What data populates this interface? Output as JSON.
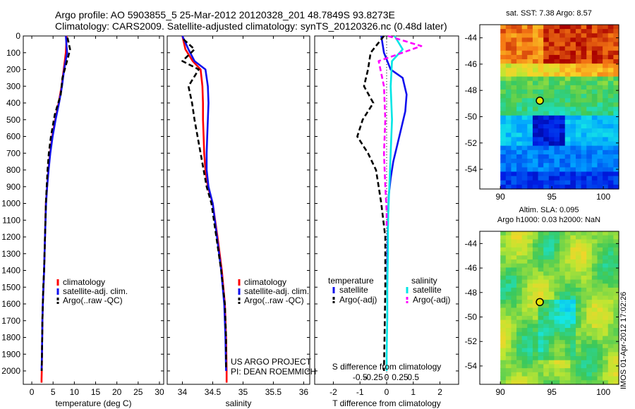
{
  "header": {
    "line1": "Argo profile: AO 5903855_5 25-Mar-2012 20120328_201 48.7849S 93.8273E",
    "line2": "Climatology: CARS2009. Satellite-adjusted climatology: synTS_20120326.nc (0.48d later)"
  },
  "colors": {
    "climatology": "#ff0000",
    "satellite": "#1010ee",
    "argo": "#000000",
    "sat_salinity": "#00e5e5",
    "argo_salinity": "#ff00ff",
    "ocean_deep": "#0000aa",
    "warm": "#aa0000"
  },
  "stamp": "IMOS 01-Apr-2012 17:02:26",
  "chart_data": [
    {
      "id": "temperature",
      "type": "line",
      "xlabel": "temperature (deg C)",
      "ylabel": "",
      "xlim": [
        -2,
        31
      ],
      "ylim": [
        2080,
        0
      ],
      "xticks": [
        0,
        5,
        10,
        15,
        20,
        25,
        30
      ],
      "xticklabels": [
        "0",
        "5",
        "10",
        "15",
        "20",
        "25",
        "30"
      ],
      "yticks": [
        0,
        100,
        200,
        300,
        400,
        500,
        600,
        700,
        800,
        900,
        1000,
        1100,
        1200,
        1300,
        1400,
        1500,
        1600,
        1700,
        1800,
        1900,
        2000
      ],
      "yticklabels": [
        "0",
        "100",
        "200",
        "300",
        "400",
        "500",
        "600",
        "700",
        "800",
        "900",
        "1000",
        "1100",
        "1200",
        "1300",
        "1400",
        "1500",
        "1600",
        "1700",
        "1800",
        "1900",
        "2000"
      ],
      "legend": [
        "climatology",
        "satellite-adj. clim.",
        "Argo(..raw -QC)"
      ],
      "series": [
        {
          "name": "climatology",
          "style": "solid",
          "color_key": "climatology",
          "x": [
            8.2,
            8.0,
            7.5,
            7.0,
            6.3,
            5.5,
            4.8,
            4.3,
            3.9,
            3.6,
            3.3,
            3.1,
            2.9,
            2.75,
            2.6,
            2.5,
            2.45,
            2.4,
            2.35,
            2.3,
            2.3
          ],
          "y": [
            0,
            100,
            200,
            300,
            400,
            500,
            600,
            700,
            800,
            900,
            1000,
            1200,
            1400,
            1500,
            1600,
            1700,
            1800,
            1900,
            2000,
            2050,
            2070
          ]
        },
        {
          "name": "satellite-adj. clim.",
          "style": "solid",
          "color_key": "satellite",
          "x": [
            8.0,
            8.3,
            7.6,
            7.1,
            6.4,
            5.6,
            4.9,
            4.35,
            3.95,
            3.6,
            3.35,
            3.1,
            2.9,
            2.75,
            2.6,
            2.5,
            2.45,
            2.4,
            2.35,
            2.3
          ],
          "y": [
            0,
            100,
            200,
            300,
            400,
            500,
            600,
            700,
            800,
            900,
            1000,
            1200,
            1400,
            1500,
            1600,
            1700,
            1800,
            1900,
            1950,
            2000
          ]
        },
        {
          "name": "Argo(..raw -QC)",
          "style": "dashed",
          "color_key": "argo",
          "x": [
            8.4,
            9.0,
            8.6,
            7.2,
            6.8,
            5.4,
            4.5,
            4.0,
            3.7,
            3.5,
            3.3,
            3.1,
            2.9,
            2.7,
            2.6,
            2.5,
            2.45,
            2.4,
            2.35,
            2.35
          ],
          "y": [
            10,
            80,
            120,
            250,
            350,
            470,
            600,
            700,
            800,
            900,
            1000,
            1200,
            1400,
            1500,
            1600,
            1700,
            1800,
            1900,
            1980,
            2000
          ]
        }
      ]
    },
    {
      "id": "salinity",
      "type": "line",
      "xlabel": "salinity",
      "ylabel": "",
      "xlim": [
        33.75,
        36.1
      ],
      "ylim": [
        2080,
        0
      ],
      "xticks": [
        34,
        34.5,
        35,
        35.5,
        36
      ],
      "xticklabels": [
        "34",
        "34.5",
        "35",
        "35.5",
        "36"
      ],
      "legend": [
        "climatology",
        "satellite-adj. clim.",
        "Argo(..raw -QC)"
      ],
      "annotations": [
        "US ARGO PROJECT",
        "PI: DEAN ROEMMICH"
      ],
      "series": [
        {
          "name": "climatology",
          "style": "solid",
          "color_key": "climatology",
          "x": [
            34.0,
            34.05,
            34.17,
            34.3,
            34.33,
            34.34,
            34.34,
            34.35,
            34.36,
            34.38,
            34.42,
            34.5,
            34.58,
            34.65,
            34.7,
            34.72,
            34.73,
            34.73
          ],
          "y": [
            0,
            80,
            150,
            200,
            300,
            400,
            500,
            600,
            700,
            800,
            900,
            1000,
            1200,
            1400,
            1600,
            1800,
            2000,
            2070
          ]
        },
        {
          "name": "satellite-adj. clim.",
          "style": "solid",
          "color_key": "satellite",
          "x": [
            34.0,
            34.1,
            34.2,
            34.38,
            34.42,
            34.43,
            34.42,
            34.41,
            34.4,
            34.4,
            34.43,
            34.5,
            34.57,
            34.64,
            34.69,
            34.71,
            34.72
          ],
          "y": [
            0,
            80,
            150,
            200,
            300,
            400,
            500,
            600,
            700,
            800,
            900,
            1000,
            1200,
            1400,
            1600,
            1800,
            2000
          ]
        },
        {
          "name": "Argo(..raw -QC)",
          "style": "dashed",
          "color_key": "argo",
          "x": [
            34.02,
            34.2,
            34.0,
            34.27,
            34.1,
            34.16,
            34.2,
            34.25,
            34.3,
            34.35,
            34.4,
            34.48,
            34.56,
            34.64,
            34.7,
            34.72,
            34.72
          ],
          "y": [
            20,
            80,
            150,
            200,
            300,
            400,
            500,
            600,
            700,
            800,
            900,
            1000,
            1200,
            1400,
            1600,
            1800,
            1980
          ]
        }
      ]
    },
    {
      "id": "difference",
      "type": "line",
      "xlabel": "T difference from climatology",
      "top_label": "S difference from climatology",
      "xlim": [
        -2.7,
        2.7
      ],
      "ylim": [
        2080,
        0
      ],
      "xticks": [
        -2,
        -1,
        0,
        1,
        2
      ],
      "xticklabels": [
        "-2",
        "-1",
        "0",
        "1",
        "2"
      ],
      "top_ticks": [
        -1,
        -0.5,
        0,
        0.5,
        1
      ],
      "top_ticklabels": [
        "-0.5",
        "-0.25",
        "0",
        "0.25",
        "0.5"
      ],
      "legend_headers": [
        "temperature",
        "salinity"
      ],
      "legend": [
        "satellite",
        "Argo(-adj)",
        "satellite",
        "Argo(-adj)"
      ],
      "series": [
        {
          "name": "satellite",
          "group": "temperature",
          "style": "solid",
          "color_key": "satellite",
          "x": [
            -0.2,
            -0.1,
            0.15,
            0.6,
            0.75,
            0.7,
            0.55,
            0.4,
            0.25,
            0.15,
            0.08,
            0.05,
            0.03,
            0.02,
            0.02
          ],
          "y": [
            0,
            100,
            200,
            250,
            350,
            450,
            550,
            650,
            750,
            850,
            950,
            1100,
            1300,
            1500,
            1700
          ]
        },
        {
          "name": "Argo(-adj)",
          "group": "temperature",
          "style": "dashed",
          "color_key": "argo",
          "x": [
            -0.1,
            -0.6,
            -0.7,
            -0.85,
            -0.5,
            -0.9,
            -1.1,
            -0.7,
            -0.4,
            -0.3,
            -0.2,
            -0.05,
            -0.05,
            -0.08,
            -0.1
          ],
          "y": [
            0,
            100,
            200,
            300,
            400,
            500,
            600,
            700,
            800,
            900,
            1000,
            1200,
            1500,
            1800,
            2000
          ]
        },
        {
          "name": "satellite",
          "group": "salinity",
          "style": "solid",
          "color_key": "sat_salinity",
          "x": [
            0.3,
            0.6,
            0.2,
            0.15,
            0.2,
            0.15,
            0.1,
            0.05,
            0.05,
            0.02,
            0.02,
            0.0,
            0.0
          ],
          "y": [
            0,
            80,
            150,
            300,
            500,
            700,
            900,
            1100,
            1300,
            1500,
            1700,
            1900,
            2000
          ]
        },
        {
          "name": "Argo(-adj)",
          "group": "salinity",
          "style": "dashed",
          "color_key": "argo_salinity",
          "x": [
            0.05,
            1.3,
            -0.3,
            -0.1,
            -0.05,
            -0.1,
            -0.05,
            0.0,
            0.0
          ],
          "y": [
            0,
            60,
            150,
            300,
            500,
            700,
            900,
            1050,
            1150
          ]
        }
      ]
    },
    {
      "id": "sst_map",
      "type": "heatmap",
      "title": "sat. SST: 7.38 Argo: 8.57",
      "xlim": [
        88,
        101.5
      ],
      "ylim": [
        -55.5,
        -43
      ],
      "xticks": [
        90,
        95,
        100
      ],
      "xticklabels": [
        "90",
        "95",
        "100"
      ],
      "yticks": [
        -44,
        -46,
        -48,
        -50,
        -52,
        -54
      ],
      "yticklabels": [
        "-44",
        "-46",
        "-48",
        "-50",
        "-52",
        "-54"
      ],
      "marker": {
        "lon": 93.83,
        "lat": -48.78
      }
    },
    {
      "id": "sla_map",
      "type": "heatmap",
      "title": "Altim. SLA: 0.095",
      "subtitle": "Argo h1000: 0.03 h2000: NaN",
      "xlim": [
        88,
        101.5
      ],
      "ylim": [
        -55.5,
        -43
      ],
      "xticks": [
        90,
        95,
        100
      ],
      "xticklabels": [
        "90",
        "95",
        "100"
      ],
      "yticks": [
        -44,
        -46,
        -48,
        -50,
        -52,
        -54
      ],
      "yticklabels": [
        "-44",
        "-46",
        "-48",
        "-50",
        "-52",
        "-54"
      ],
      "marker": {
        "lon": 93.83,
        "lat": -48.78
      }
    }
  ]
}
